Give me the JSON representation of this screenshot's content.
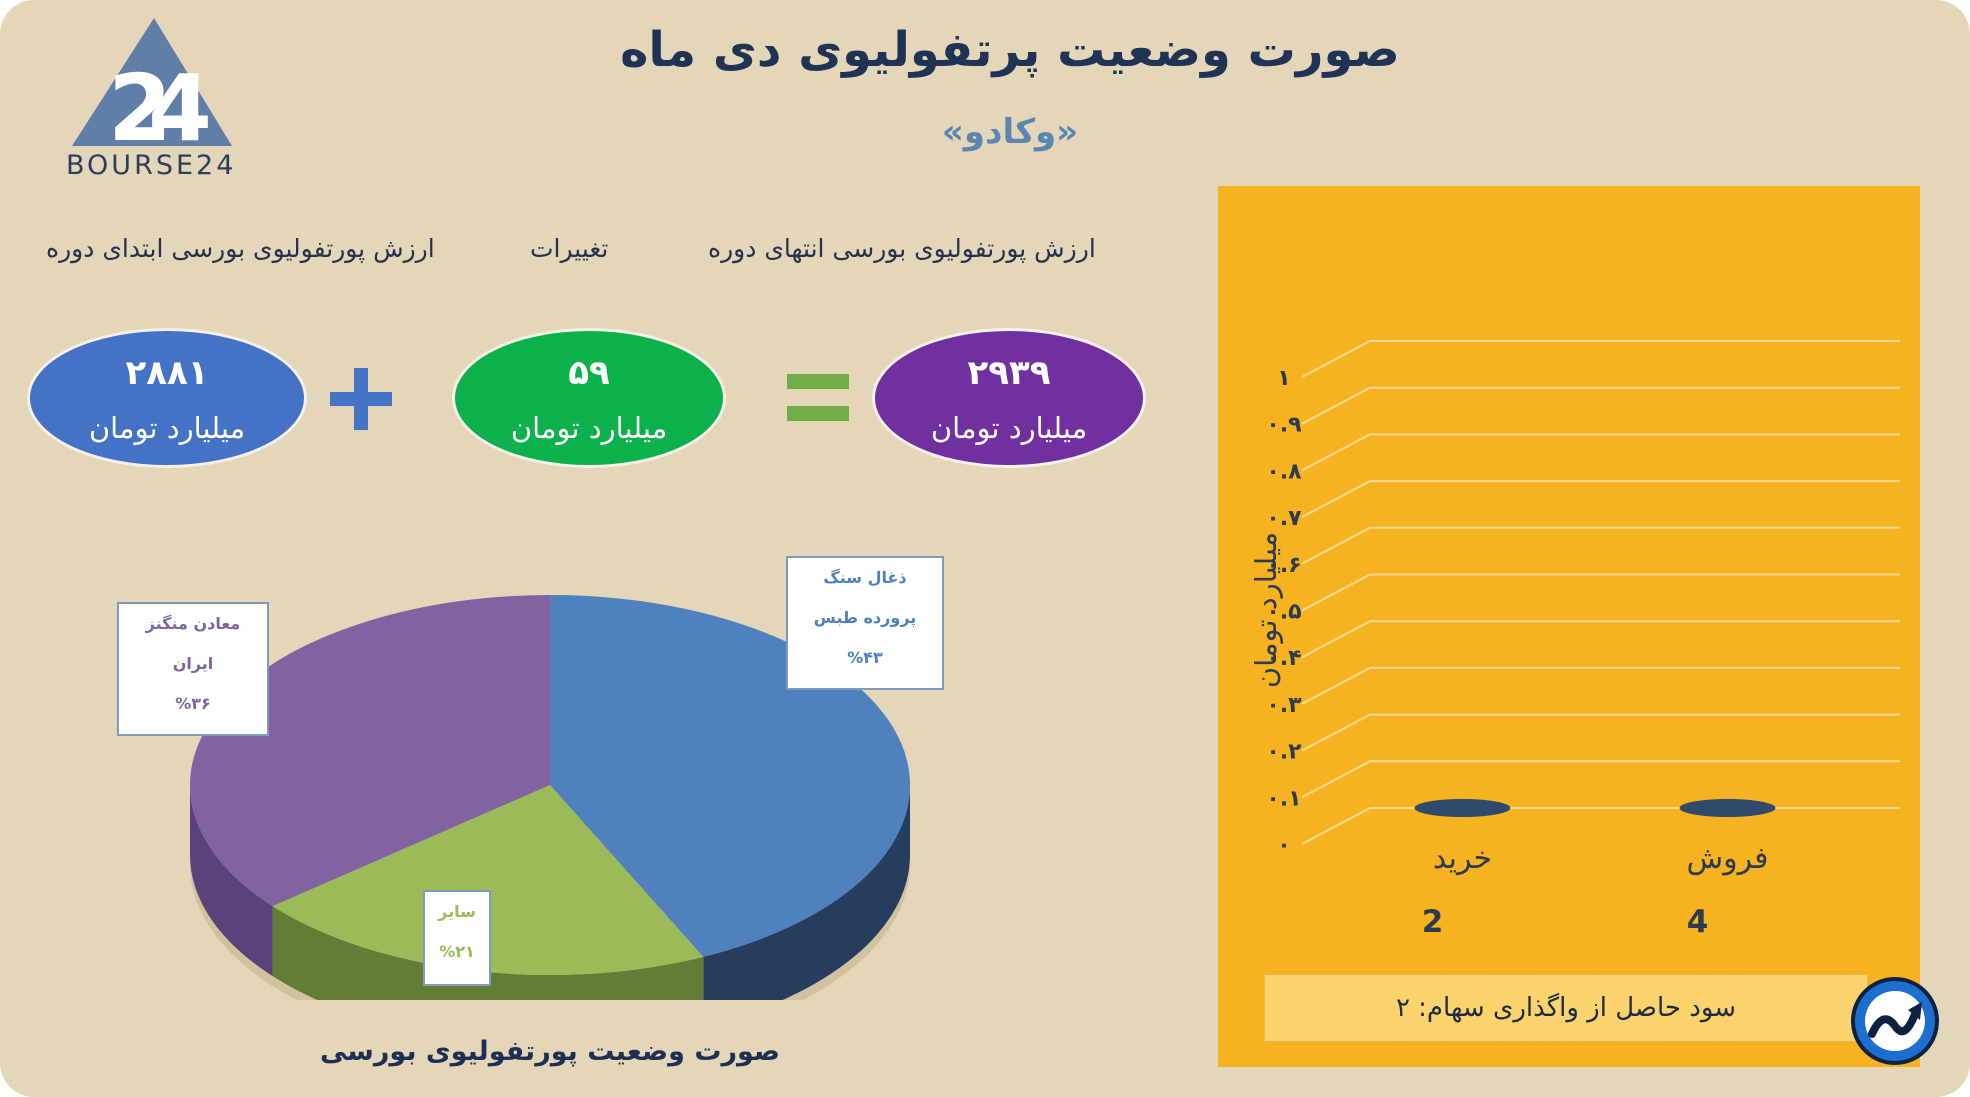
{
  "header": {
    "logo_text": "BOURSE24",
    "title": "صورت وضعیت پرتفولیوی دی ماه",
    "subtitle": "«وکادو»"
  },
  "summary": {
    "start_label": "ارزش پورتفولیوی بورسی ابتدای دوره",
    "change_label": "تغییرات",
    "end_label": "ارزش پورتفولیوی بورسی انتهای دوره",
    "start_value": "۲۸۸۱",
    "change_value": "۵۹",
    "end_value": "۲۹۳۹",
    "unit": "میلیارد تومان",
    "colors": {
      "start": "#4472c4",
      "change": "#0db14b",
      "end": "#7030a0",
      "plus": "#4472c4",
      "equals": "#70ad47"
    }
  },
  "chart_data": [
    {
      "type": "pie",
      "title": "صورت وضعیت پورتفولیوی بورسی",
      "slices": [
        {
          "label_line1": "ذغال سنگ",
          "label_line2": "پرورده طبس",
          "percent_text": "%۴۳",
          "value": 43,
          "color": "#4e81bd",
          "side_color": "#263d5e"
        },
        {
          "label_line1": "سایر",
          "percent_text": "%۲۱",
          "value": 21,
          "color": "#9bbb59",
          "side_color": "#627d35"
        },
        {
          "label_line1": "معادن منگنز",
          "label_line2": "ایران",
          "percent_text": "%۳۶",
          "value": 36,
          "color": "#8064a2",
          "side_color": "#5a437a"
        }
      ]
    },
    {
      "type": "bar",
      "ylabel": "میلیارد تومان",
      "categories": [
        "خرید",
        "فروش"
      ],
      "category_counts": [
        "2",
        "4"
      ],
      "values": [
        0,
        0
      ],
      "ylim": [
        0,
        1
      ],
      "yticks": [
        "۰",
        "۰.۱",
        "۰.۲",
        "۰.۳",
        "۰.۴",
        "۰.۵",
        "۰.۶",
        "۰.۷",
        "۰.۸",
        "۰.۹",
        "۱"
      ],
      "grid": true,
      "bar_color": "#2f4a6b",
      "background": "#f6b21f"
    }
  ],
  "profit": {
    "text": "سود حاصل از واگذاری سهام: ۲"
  }
}
